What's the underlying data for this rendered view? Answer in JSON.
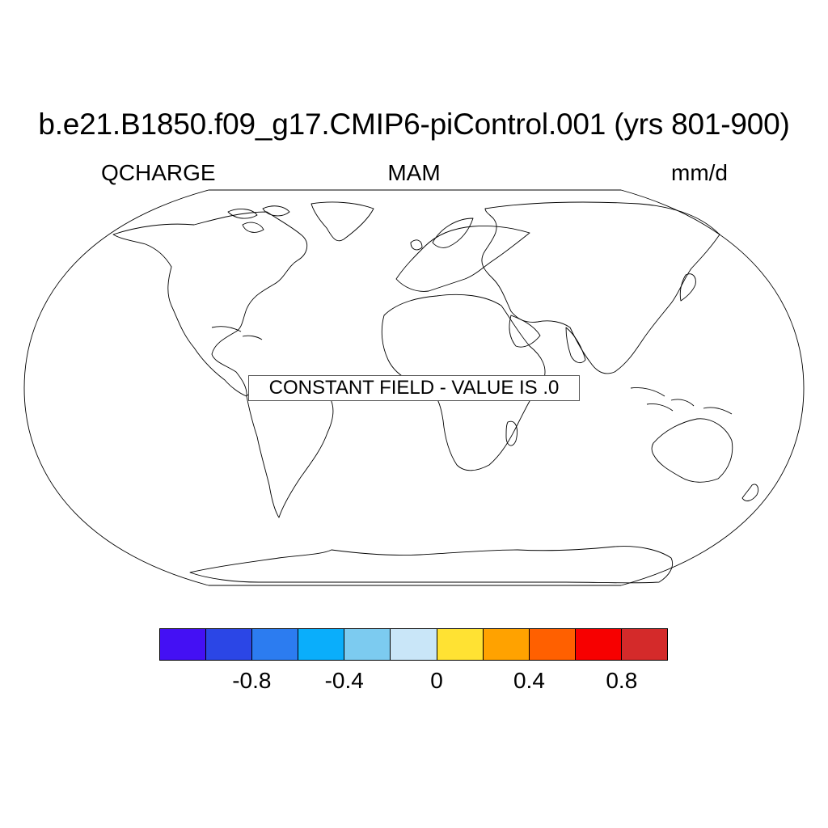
{
  "title": "b.e21.B1850.f09_g17.CMIP6-piControl.001 (yrs 801-900)",
  "subtitle": {
    "left": "QCHARGE",
    "center": "MAM",
    "right": "mm/d"
  },
  "map": {
    "projection": "Robinson",
    "message": "CONSTANT FIELD - VALUE IS .0"
  },
  "colorbar": {
    "colors": [
      "#4410f4",
      "#2b46e6",
      "#2c7cf0",
      "#0aaefb",
      "#7ccbf0",
      "#c9e6f8",
      "#ffe233",
      "#ffa200",
      "#ff6000",
      "#f70000",
      "#d42a2a"
    ],
    "labels": [
      "-0.8",
      "-0.4",
      "0",
      "0.4",
      "0.8"
    ]
  }
}
